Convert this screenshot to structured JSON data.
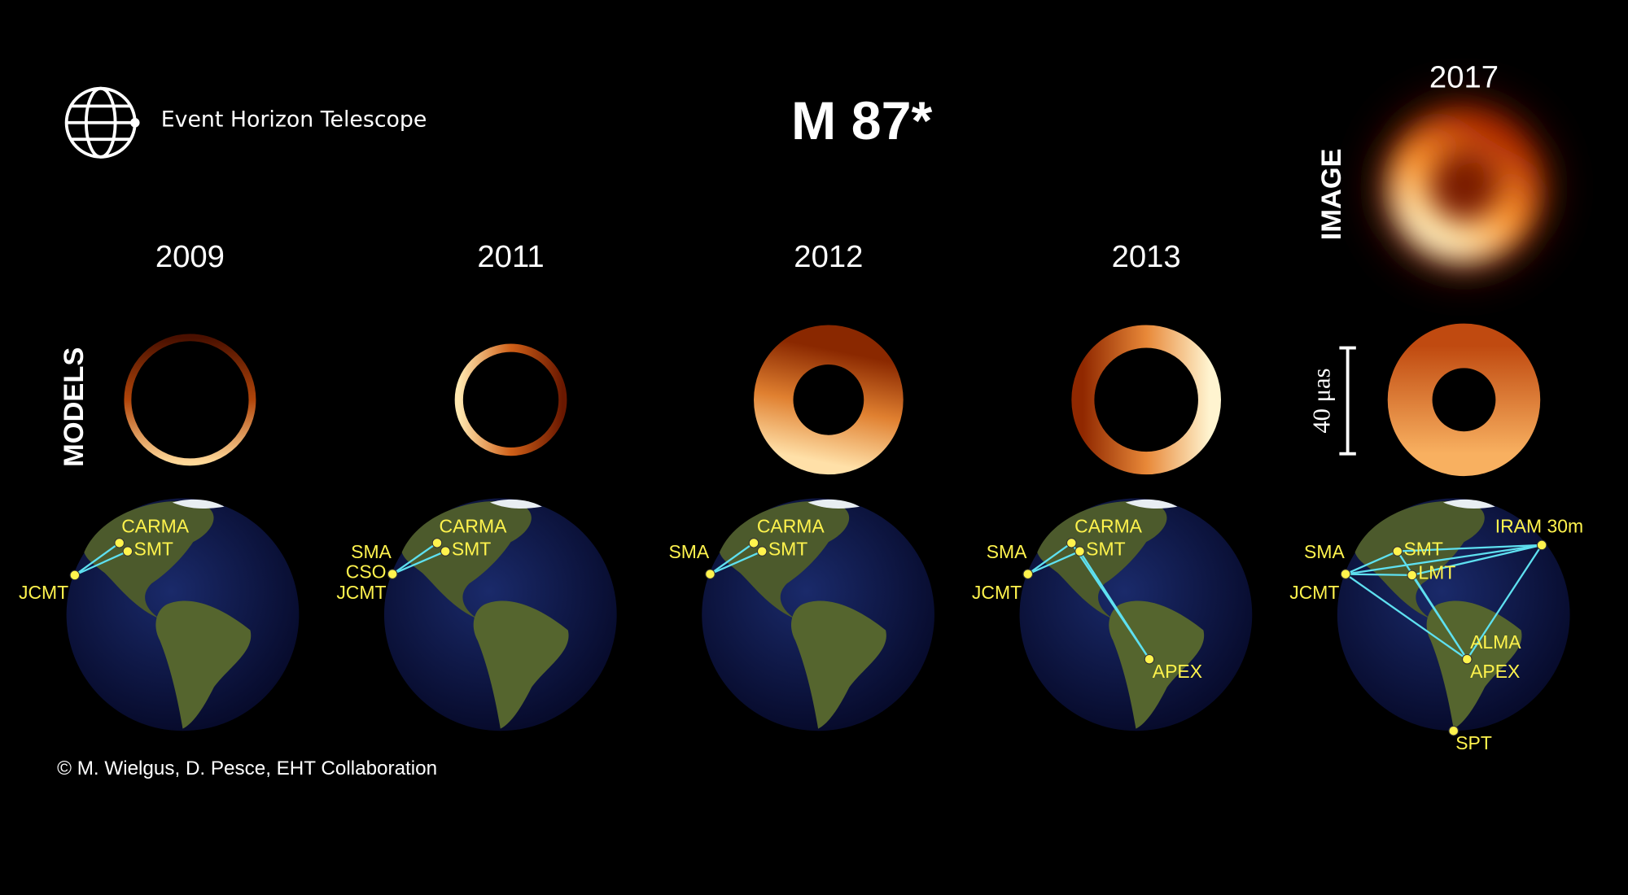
{
  "header": {
    "logo_text": "Event Horizon Telescope",
    "title": "M 87*"
  },
  "row_labels": {
    "models": "MODELS",
    "image": "IMAGE"
  },
  "scale_label": "40 μas",
  "credit": "© M. Wielgus, D. Pesce, EHT Collaboration",
  "panels": [
    {
      "year": "2009",
      "stations": [
        "CARMA",
        "SMT",
        "JCMT"
      ]
    },
    {
      "year": "2011",
      "stations": [
        "CARMA",
        "SMT",
        "SMA",
        "CSO",
        "JCMT"
      ]
    },
    {
      "year": "2012",
      "stations": [
        "CARMA",
        "SMT",
        "SMA"
      ]
    },
    {
      "year": "2013",
      "stations": [
        "CARMA",
        "SMT",
        "SMA",
        "JCMT",
        "APEX"
      ]
    },
    {
      "year": "2017",
      "stations": [
        "SMT",
        "SMA",
        "JCMT",
        "LMT",
        "IRAM 30m",
        "ALMA",
        "APEX",
        "SPT"
      ]
    }
  ]
}
